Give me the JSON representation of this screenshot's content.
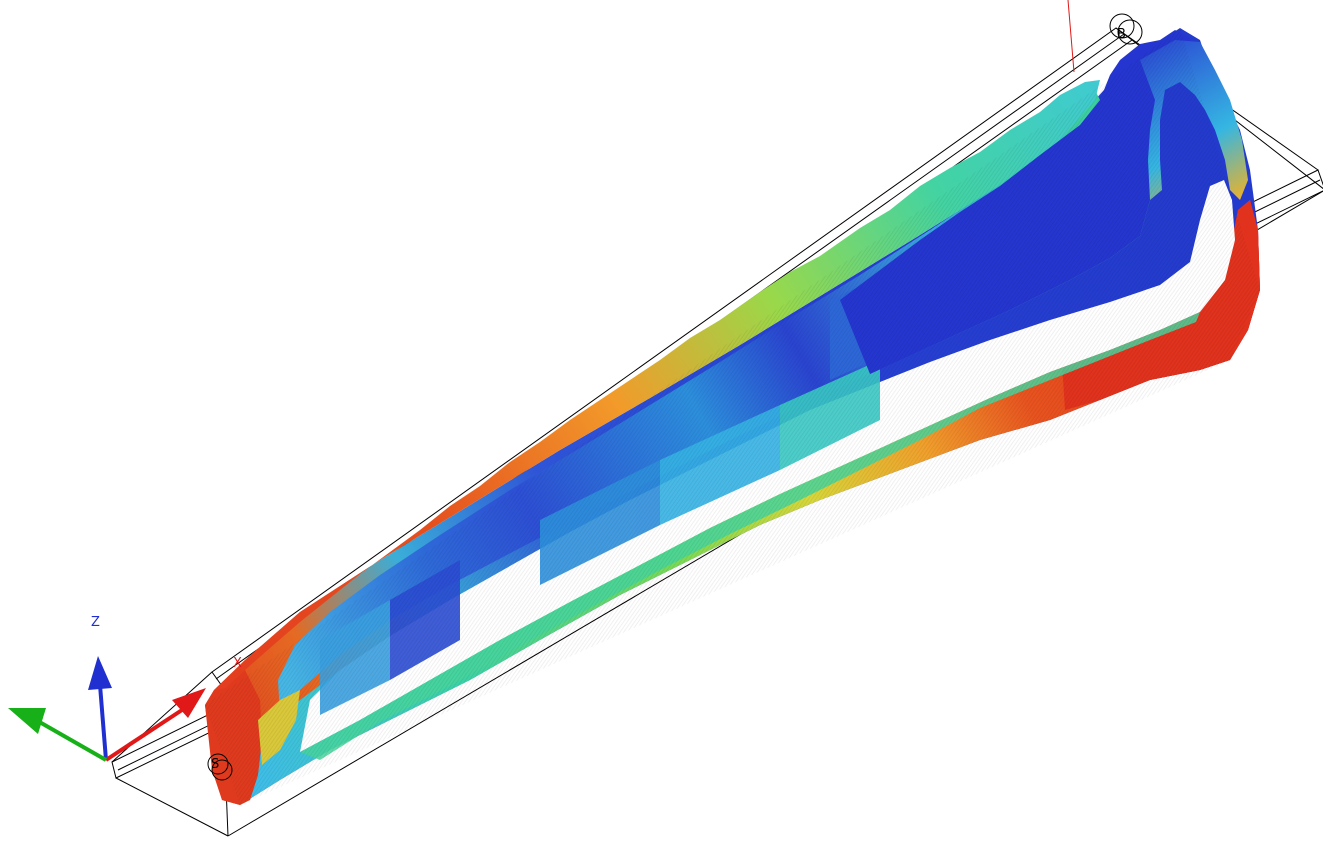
{
  "viewport": {
    "background": "#ffffff",
    "axis_labels": {
      "x": "X",
      "y": "",
      "z": "Z"
    },
    "point_labels": {
      "start": "S",
      "end": "B"
    },
    "colors": {
      "x_axis": "#e01818",
      "y_axis": "#18b018",
      "z_axis": "#1f2fd0",
      "box_edges": "#000000",
      "gradient_low": "#2d3fd8",
      "gradient_mid_low": "#36b8e6",
      "gradient_mid": "#35d49a",
      "gradient_mid_high": "#c6d83a",
      "gradient_high": "#e8381e"
    },
    "icons": {
      "triad": "xyz-axis-triad-icon"
    }
  }
}
